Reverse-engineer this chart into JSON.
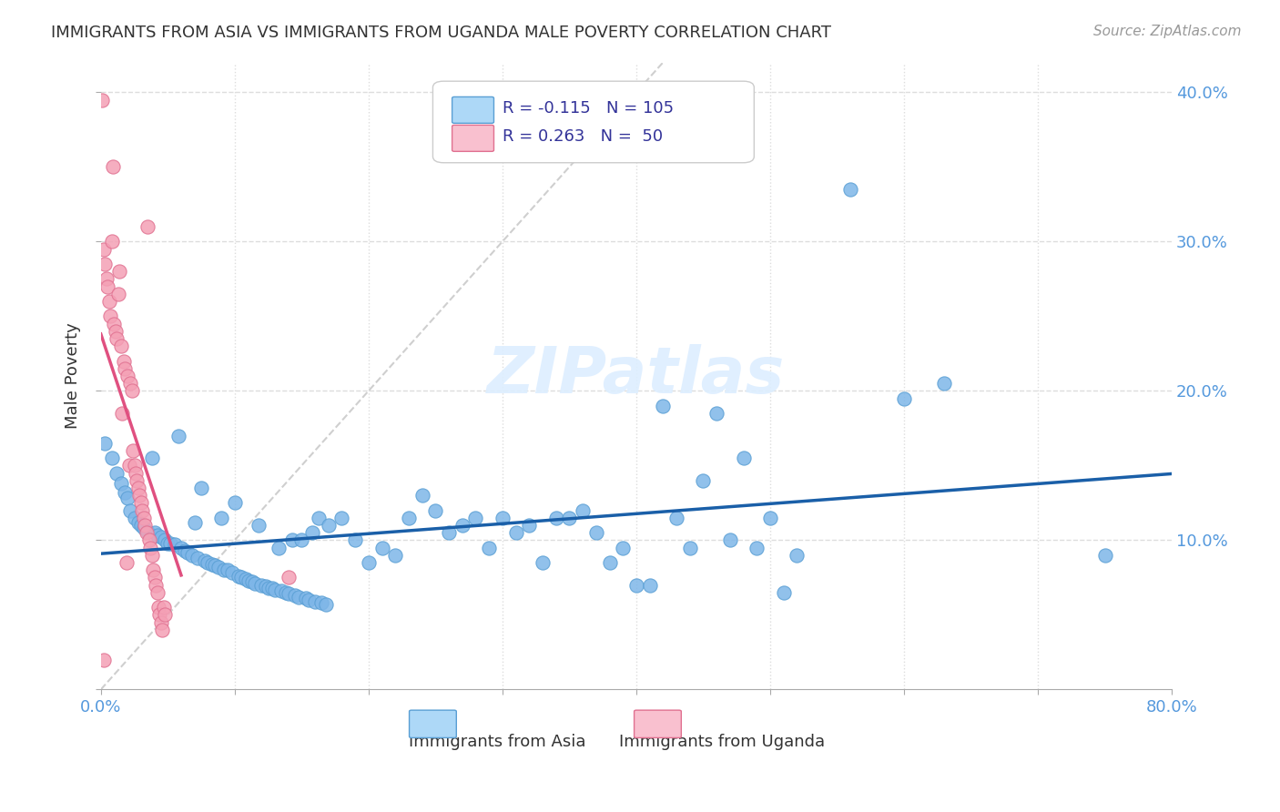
{
  "title": "IMMIGRANTS FROM ASIA VS IMMIGRANTS FROM UGANDA MALE POVERTY CORRELATION CHART",
  "source": "Source: ZipAtlas.com",
  "xlabel": "",
  "ylabel": "Male Poverty",
  "xlim": [
    0.0,
    0.8
  ],
  "ylim": [
    0.0,
    0.42
  ],
  "xticks": [
    0.0,
    0.1,
    0.2,
    0.3,
    0.4,
    0.5,
    0.6,
    0.7,
    0.8
  ],
  "xticklabels": [
    "0.0%",
    "",
    "",
    "",
    "",
    "",
    "",
    "",
    "80.0%"
  ],
  "yticks": [
    0.0,
    0.1,
    0.2,
    0.3,
    0.4
  ],
  "yticklabels": [
    "",
    "10.0%",
    "20.0%",
    "30.0%",
    "40.0%"
  ],
  "asia_color": "#7EB6E8",
  "uganda_color": "#F4A0B5",
  "asia_edge_color": "#5A9FD4",
  "uganda_edge_color": "#E07090",
  "trendline_asia_color": "#1A5FA8",
  "trendline_uganda_color": "#E05080",
  "trendline_diag_color": "#BBBBBB",
  "legend_box_asia_fill": "#ADD8F7",
  "legend_box_uganda_fill": "#F9C0CF",
  "asia_R": -0.115,
  "asia_N": 105,
  "uganda_R": 0.263,
  "uganda_N": 50,
  "watermark": "ZIPatlas",
  "background_color": "#FFFFFF",
  "grid_color": "#DDDDDD",
  "tick_color": "#5599DD",
  "asia_scatter_x": [
    0.003,
    0.008,
    0.012,
    0.015,
    0.018,
    0.02,
    0.022,
    0.025,
    0.028,
    0.03,
    0.032,
    0.035,
    0.038,
    0.04,
    0.042,
    0.045,
    0.048,
    0.05,
    0.052,
    0.055,
    0.058,
    0.06,
    0.063,
    0.065,
    0.068,
    0.07,
    0.072,
    0.075,
    0.078,
    0.08,
    0.083,
    0.085,
    0.088,
    0.09,
    0.092,
    0.095,
    0.098,
    0.1,
    0.103,
    0.105,
    0.108,
    0.11,
    0.113,
    0.115,
    0.118,
    0.12,
    0.123,
    0.125,
    0.128,
    0.13,
    0.133,
    0.135,
    0.138,
    0.14,
    0.143,
    0.145,
    0.148,
    0.15,
    0.153,
    0.155,
    0.158,
    0.16,
    0.163,
    0.165,
    0.168,
    0.17,
    0.18,
    0.19,
    0.2,
    0.21,
    0.22,
    0.23,
    0.24,
    0.25,
    0.26,
    0.27,
    0.28,
    0.29,
    0.3,
    0.31,
    0.32,
    0.33,
    0.34,
    0.35,
    0.36,
    0.37,
    0.38,
    0.39,
    0.4,
    0.41,
    0.42,
    0.43,
    0.44,
    0.45,
    0.46,
    0.47,
    0.48,
    0.49,
    0.5,
    0.51,
    0.52,
    0.56,
    0.6,
    0.63,
    0.75
  ],
  "asia_scatter_y": [
    0.165,
    0.155,
    0.145,
    0.138,
    0.132,
    0.128,
    0.12,
    0.115,
    0.112,
    0.11,
    0.108,
    0.106,
    0.155,
    0.105,
    0.103,
    0.102,
    0.1,
    0.098,
    0.098,
    0.097,
    0.17,
    0.095,
    0.093,
    0.092,
    0.09,
    0.112,
    0.088,
    0.135,
    0.086,
    0.085,
    0.084,
    0.083,
    0.082,
    0.115,
    0.08,
    0.08,
    0.078,
    0.125,
    0.076,
    0.075,
    0.074,
    0.073,
    0.072,
    0.071,
    0.11,
    0.07,
    0.069,
    0.068,
    0.068,
    0.067,
    0.095,
    0.066,
    0.065,
    0.064,
    0.1,
    0.063,
    0.062,
    0.1,
    0.061,
    0.06,
    0.105,
    0.059,
    0.115,
    0.058,
    0.057,
    0.11,
    0.115,
    0.1,
    0.085,
    0.095,
    0.09,
    0.115,
    0.13,
    0.12,
    0.105,
    0.11,
    0.115,
    0.095,
    0.115,
    0.105,
    0.11,
    0.085,
    0.115,
    0.115,
    0.12,
    0.105,
    0.085,
    0.095,
    0.07,
    0.07,
    0.19,
    0.115,
    0.095,
    0.14,
    0.185,
    0.1,
    0.155,
    0.095,
    0.115,
    0.065,
    0.09,
    0.335,
    0.195,
    0.205,
    0.09
  ],
  "uganda_scatter_x": [
    0.001,
    0.002,
    0.003,
    0.004,
    0.005,
    0.006,
    0.007,
    0.008,
    0.009,
    0.01,
    0.011,
    0.012,
    0.013,
    0.014,
    0.015,
    0.016,
    0.017,
    0.018,
    0.019,
    0.02,
    0.021,
    0.022,
    0.023,
    0.024,
    0.025,
    0.026,
    0.027,
    0.028,
    0.029,
    0.03,
    0.031,
    0.032,
    0.033,
    0.034,
    0.035,
    0.036,
    0.037,
    0.038,
    0.039,
    0.04,
    0.041,
    0.042,
    0.043,
    0.044,
    0.045,
    0.046,
    0.047,
    0.048,
    0.14,
    0.002
  ],
  "uganda_scatter_y": [
    0.395,
    0.295,
    0.285,
    0.275,
    0.27,
    0.26,
    0.25,
    0.3,
    0.35,
    0.245,
    0.24,
    0.235,
    0.265,
    0.28,
    0.23,
    0.185,
    0.22,
    0.215,
    0.085,
    0.21,
    0.15,
    0.205,
    0.2,
    0.16,
    0.15,
    0.145,
    0.14,
    0.135,
    0.13,
    0.125,
    0.12,
    0.115,
    0.11,
    0.105,
    0.31,
    0.1,
    0.095,
    0.09,
    0.08,
    0.075,
    0.07,
    0.065,
    0.055,
    0.05,
    0.045,
    0.04,
    0.055,
    0.05,
    0.075,
    0.02
  ]
}
